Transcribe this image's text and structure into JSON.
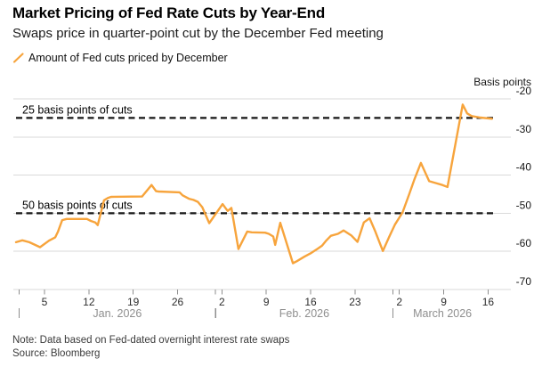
{
  "header": {
    "title": "Market Pricing of Fed Rate Cuts by Year-End",
    "subtitle": "Swaps price in quarter-point cut by the December Fed meeting",
    "legend": {
      "icon": "orange-line-slash",
      "label": "Amount of Fed cuts priced by December"
    }
  },
  "footer": {
    "note": "Note: Data based on Fed-dated overnight interest rate swaps",
    "source": "Source: Bloomberg"
  },
  "colors": {
    "series_orange": "#F7A43C",
    "grid": "#DADADA",
    "axis_tick": "#8E8E8E",
    "annotation_dash": "#161616",
    "background": "#FFFFFF"
  },
  "chart_data": {
    "type": "line",
    "title": "Market Pricing of Fed Rate Cuts by Year-End",
    "unit_label": "Basis points",
    "ylim": [
      -70,
      -20
    ],
    "y_ticks": [
      -20,
      -30,
      -40,
      -50,
      -60,
      -70
    ],
    "grid": true,
    "legend_position": "top-left",
    "x_axis": {
      "note": "day = day of year 2026; Jan 1 = 1, Feb 1 = 32, Mar 1 = 60",
      "weekly_ticks": [
        {
          "day": 5,
          "label": "5"
        },
        {
          "day": 12,
          "label": "12"
        },
        {
          "day": 19,
          "label": "19"
        },
        {
          "day": 26,
          "label": "26"
        },
        {
          "day": 33,
          "label": "2"
        },
        {
          "day": 40,
          "label": "9"
        },
        {
          "day": 47,
          "label": "16"
        },
        {
          "day": 54,
          "label": "23"
        },
        {
          "day": 61,
          "label": "2"
        },
        {
          "day": 68,
          "label": "9"
        },
        {
          "day": 75,
          "label": "16"
        }
      ],
      "months": [
        {
          "start_day": 1,
          "label": "Jan. 2026"
        },
        {
          "start_day": 32,
          "label": "Feb. 2026"
        },
        {
          "start_day": 60,
          "label": "March 2026"
        }
      ]
    },
    "annotations": [
      {
        "value": -25,
        "label": "25 basis points of cuts"
      },
      {
        "value": -50,
        "label": "50 basis points of cuts"
      }
    ],
    "series": [
      {
        "name": "Amount of Fed cuts priced by December",
        "color": "#F7A43C",
        "points": [
          [
            0.5,
            -57.6
          ],
          [
            1.5,
            -57.1
          ],
          [
            2.6,
            -57.6
          ],
          [
            4.3,
            -58.9
          ],
          [
            5.7,
            -57.2
          ],
          [
            6.7,
            -56.3
          ],
          [
            7.1,
            -54.9
          ],
          [
            7.8,
            -51.8
          ],
          [
            8.5,
            -51.5
          ],
          [
            11.7,
            -51.5
          ],
          [
            12.3,
            -52.0
          ],
          [
            13.0,
            -52.4
          ],
          [
            13.4,
            -53.1
          ],
          [
            14.4,
            -46.6
          ],
          [
            15.0,
            -46.0
          ],
          [
            15.5,
            -45.7
          ],
          [
            20.4,
            -45.6
          ],
          [
            21.9,
            -42.6
          ],
          [
            22.6,
            -44.2
          ],
          [
            23.0,
            -44.3
          ],
          [
            26.3,
            -44.5
          ],
          [
            26.8,
            -45.3
          ],
          [
            27.8,
            -46.2
          ],
          [
            28.5,
            -46.5
          ],
          [
            29.2,
            -47.0
          ],
          [
            29.9,
            -48.4
          ],
          [
            31.0,
            -52.6
          ],
          [
            33.1,
            -47.6
          ],
          [
            33.9,
            -49.4
          ],
          [
            34.5,
            -48.6
          ],
          [
            35.6,
            -59.4
          ],
          [
            37.0,
            -54.8
          ],
          [
            37.7,
            -55.0
          ],
          [
            39.8,
            -55.1
          ],
          [
            40.4,
            -55.4
          ],
          [
            41.1,
            -56.1
          ],
          [
            41.4,
            -58.3
          ],
          [
            42.2,
            -52.5
          ],
          [
            44.2,
            -63.1
          ],
          [
            44.8,
            -62.6
          ],
          [
            46.0,
            -61.4
          ],
          [
            47.1,
            -60.4
          ],
          [
            48.1,
            -59.3
          ],
          [
            48.8,
            -58.5
          ],
          [
            49.5,
            -57.1
          ],
          [
            50.2,
            -55.9
          ],
          [
            51.3,
            -55.4
          ],
          [
            52.2,
            -54.5
          ],
          [
            53.4,
            -55.8
          ],
          [
            54.4,
            -57.5
          ],
          [
            55.4,
            -52.4
          ],
          [
            56.3,
            -51.3
          ],
          [
            57.2,
            -54.8
          ],
          [
            58.4,
            -59.9
          ],
          [
            59.4,
            -56.2
          ],
          [
            60.3,
            -53.0
          ],
          [
            61.5,
            -49.8
          ],
          [
            62.6,
            -44.8
          ],
          [
            63.4,
            -41.0
          ],
          [
            64.4,
            -36.8
          ],
          [
            65.7,
            -41.6
          ],
          [
            66.8,
            -42.1
          ],
          [
            67.8,
            -42.6
          ],
          [
            68.6,
            -43.1
          ],
          [
            71.0,
            -21.5
          ],
          [
            71.7,
            -23.8
          ],
          [
            72.4,
            -24.5
          ],
          [
            73.8,
            -24.9
          ],
          [
            75.6,
            -25.2
          ]
        ]
      }
    ]
  }
}
